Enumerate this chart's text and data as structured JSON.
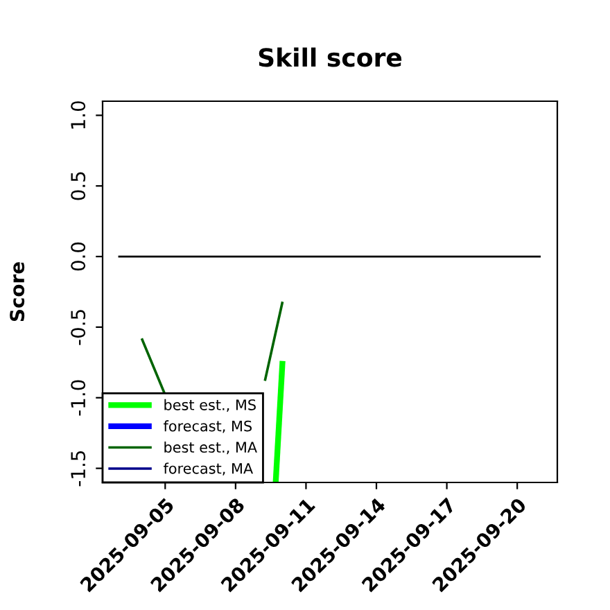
{
  "chart_data": {
    "type": "line",
    "title": "Skill score",
    "ylabel": "Score",
    "xlim": [
      "2025-09-02T08:00",
      "2025-09-21T17:00"
    ],
    "xticks": [
      {
        "value": "2025-09-05",
        "label": "2025-09-05"
      },
      {
        "value": "2025-09-08",
        "label": "2025-09-08"
      },
      {
        "value": "2025-09-11",
        "label": "2025-09-11"
      },
      {
        "value": "2025-09-14",
        "label": "2025-09-14"
      },
      {
        "value": "2025-09-17",
        "label": "2025-09-17"
      },
      {
        "value": "2025-09-20",
        "label": "2025-09-20"
      }
    ],
    "ylim": [
      -1.6,
      1.1
    ],
    "yticks": [
      {
        "value": 1.0,
        "label": "1.0"
      },
      {
        "value": 0.5,
        "label": "0.5"
      },
      {
        "value": 0.0,
        "label": "0.0"
      },
      {
        "value": -0.5,
        "label": "-0.5"
      },
      {
        "value": -1.0,
        "label": "-1.0"
      },
      {
        "value": -1.5,
        "label": "-1.5"
      }
    ],
    "grid": false,
    "legend": "bottom left",
    "marker": "none",
    "line_style": "solid",
    "series": [
      {
        "name": "best est., MS",
        "color": "#00ff00",
        "x": [
          "2025-09-09T17:00",
          "2025-09-10"
        ],
        "values": [
          -1.6,
          -0.74
        ]
      },
      {
        "name": "forecast, MS",
        "color": "#0000ff"
      },
      {
        "name": "best est., MA",
        "color": "#006400",
        "x": [
          "2025-09-04",
          "2025-09-05",
          "2025-09-06",
          "2025-09-07",
          "2025-09-08",
          "2025-09-09T06:00",
          "2025-09-10"
        ],
        "values": [
          -0.58,
          -0.98,
          null,
          null,
          null,
          -0.88,
          -0.32
        ]
      },
      {
        "name": "forecast, MA",
        "color": "#00008b"
      },
      {
        "color": "#000000",
        "x": [
          "2025-09-03",
          "2025-09-21"
        ],
        "values": [
          0,
          0
        ]
      }
    ]
  }
}
